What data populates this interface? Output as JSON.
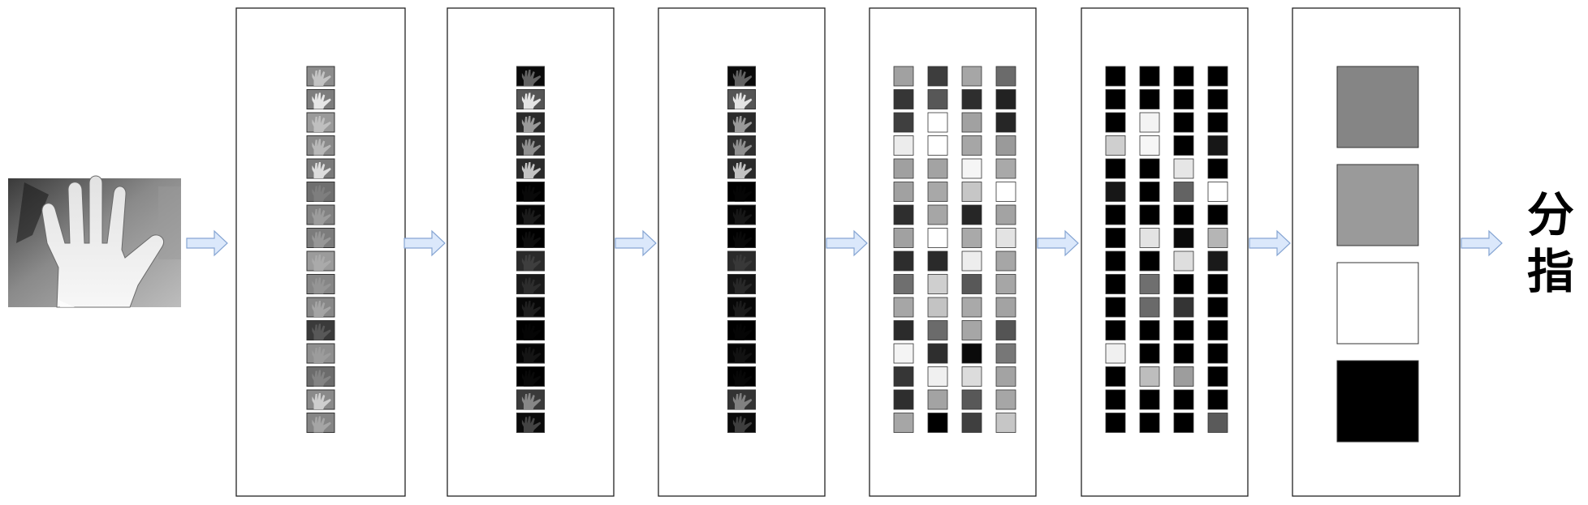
{
  "output_label": {
    "char1": "分",
    "char2": "指"
  },
  "colors": {
    "arrow_fill": "#dbe8fb",
    "arrow_stroke": "#86a5d3",
    "panel_border": "#222222",
    "cell_border": "#333333"
  },
  "input_image": {
    "icon": "grayscale-hand-photo"
  },
  "stages": [
    {
      "kind": "feature-maps",
      "maps": [
        {
          "bg": "#8c8c8c",
          "hand": "#c9c9c9"
        },
        {
          "bg": "#7d7d7d",
          "hand": "#f2f2f2"
        },
        {
          "bg": "#9a9a9a",
          "hand": "#c3c3c3"
        },
        {
          "bg": "#8a8a8a",
          "hand": "#bdbdbd"
        },
        {
          "bg": "#7a7a7a",
          "hand": "#e8e8e8"
        },
        {
          "bg": "#6f6f6f",
          "hand": "#808080"
        },
        {
          "bg": "#828282",
          "hand": "#9f9f9f"
        },
        {
          "bg": "#7c7c7c",
          "hand": "#9a9a9a"
        },
        {
          "bg": "#9b9b9b",
          "hand": "#acacac"
        },
        {
          "bg": "#868686",
          "hand": "#979797"
        },
        {
          "bg": "#888888",
          "hand": "#a7a7a7"
        },
        {
          "bg": "#3a3a3a",
          "hand": "#5c5c5c"
        },
        {
          "bg": "#8f8f8f",
          "hand": "#9d9d9d"
        },
        {
          "bg": "#6c6c6c",
          "hand": "#878787"
        },
        {
          "bg": "#8a8a8a",
          "hand": "#d5d5d5"
        },
        {
          "bg": "#858585",
          "hand": "#a9a9a9"
        }
      ]
    },
    {
      "kind": "feature-maps",
      "maps": [
        {
          "bg": "#0a0a0a",
          "hand": "#6b6b6b"
        },
        {
          "bg": "#555555",
          "hand": "#f4f4f4"
        },
        {
          "bg": "#2a2a2a",
          "hand": "#a6a6a6"
        },
        {
          "bg": "#2f2f2f",
          "hand": "#9a9a9a"
        },
        {
          "bg": "#2a2a2a",
          "hand": "#d4d4d4"
        },
        {
          "bg": "#000000",
          "hand": "#0a0a0a"
        },
        {
          "bg": "#050505",
          "hand": "#1e1e1e"
        },
        {
          "bg": "#000000",
          "hand": "#0f0f0f"
        },
        {
          "bg": "#2a2a2a",
          "hand": "#404040"
        },
        {
          "bg": "#1a1a1a",
          "hand": "#303030"
        },
        {
          "bg": "#070707",
          "hand": "#222222"
        },
        {
          "bg": "#000000",
          "hand": "#060606"
        },
        {
          "bg": "#050505",
          "hand": "#171717"
        },
        {
          "bg": "#000000",
          "hand": "#0a0a0a"
        },
        {
          "bg": "#3a3a3a",
          "hand": "#909090"
        },
        {
          "bg": "#0a0a0a",
          "hand": "#4a4a4a"
        }
      ]
    },
    {
      "kind": "feature-maps",
      "maps": [
        {
          "bg": "#0a0a0a",
          "hand": "#6b6b6b"
        },
        {
          "bg": "#555555",
          "hand": "#f4f4f4"
        },
        {
          "bg": "#2a2a2a",
          "hand": "#a6a6a6"
        },
        {
          "bg": "#2f2f2f",
          "hand": "#9a9a9a"
        },
        {
          "bg": "#2a2a2a",
          "hand": "#d4d4d4"
        },
        {
          "bg": "#000000",
          "hand": "#050505"
        },
        {
          "bg": "#050505",
          "hand": "#1a1a1a"
        },
        {
          "bg": "#000000",
          "hand": "#0a0a0a"
        },
        {
          "bg": "#2a2a2a",
          "hand": "#3a3a3a"
        },
        {
          "bg": "#141414",
          "hand": "#2a2a2a"
        },
        {
          "bg": "#070707",
          "hand": "#1e1e1e"
        },
        {
          "bg": "#000000",
          "hand": "#050505"
        },
        {
          "bg": "#050505",
          "hand": "#141414"
        },
        {
          "bg": "#000000",
          "hand": "#080808"
        },
        {
          "bg": "#333333",
          "hand": "#8a8a8a"
        },
        {
          "bg": "#0a0a0a",
          "hand": "#444444"
        }
      ]
    },
    {
      "kind": "grid",
      "rows": [
        [
          "#a1a1a1",
          "#3d3d3d",
          "#a6a6a6",
          "#6b6b6b"
        ],
        [
          "#363636",
          "#575757",
          "#2e2e2e",
          "#222222"
        ],
        [
          "#3f3f3f",
          "#ffffff",
          "#a1a1a1",
          "#262626"
        ],
        [
          "#ececec",
          "#ffffff",
          "#a6a6a6",
          "#9a9a9a"
        ],
        [
          "#a0a0a0",
          "#a3a3a3",
          "#f5f5f5",
          "#a9a9a9"
        ],
        [
          "#a1a1a1",
          "#a8a8a8",
          "#c6c6c6",
          "#ffffff"
        ],
        [
          "#2e2e2e",
          "#a6a6a6",
          "#262626",
          "#a3a3a3"
        ],
        [
          "#a1a1a1",
          "#ffffff",
          "#a9a9a9",
          "#e3e3e3"
        ],
        [
          "#2d2d2d",
          "#2a2a2a",
          "#ededed",
          "#a6a6a6"
        ],
        [
          "#6f6f6f",
          "#cfcfcf",
          "#585858",
          "#a6a6a6"
        ],
        [
          "#a6a6a6",
          "#c3c3c3",
          "#a9a9a9",
          "#a3a3a3"
        ],
        [
          "#2b2b2b",
          "#6b6b6b",
          "#a6a6a6",
          "#545454"
        ],
        [
          "#f4f4f4",
          "#2e2e2e",
          "#0a0a0a",
          "#777777"
        ],
        [
          "#363636",
          "#f0f0f0",
          "#dcdcdc",
          "#a3a3a3"
        ],
        [
          "#2e2e2e",
          "#a3a3a3",
          "#585858",
          "#a6a6a6"
        ],
        [
          "#a6a6a6",
          "#000000",
          "#3f3f3f",
          "#c6c6c6"
        ]
      ]
    },
    {
      "kind": "grid",
      "rows": [
        [
          "#000000",
          "#000000",
          "#000000",
          "#000000"
        ],
        [
          "#000000",
          "#000000",
          "#000000",
          "#000000"
        ],
        [
          "#000000",
          "#f3f3f3",
          "#000000",
          "#000000"
        ],
        [
          "#cfcfcf",
          "#f6f6f6",
          "#000000",
          "#171717"
        ],
        [
          "#000000",
          "#000000",
          "#e6e6e6",
          "#000000"
        ],
        [
          "#171717",
          "#000000",
          "#636363",
          "#ffffff"
        ],
        [
          "#000000",
          "#000000",
          "#000000",
          "#000000"
        ],
        [
          "#000000",
          "#e3e3e3",
          "#0a0a0a",
          "#b5b5b5"
        ],
        [
          "#000000",
          "#000000",
          "#dedede",
          "#1a1a1a"
        ],
        [
          "#000000",
          "#6f6f6f",
          "#000000",
          "#000000"
        ],
        [
          "#000000",
          "#6a6a6a",
          "#343434",
          "#000000"
        ],
        [
          "#000000",
          "#000000",
          "#000000",
          "#000000"
        ],
        [
          "#f0f0f0",
          "#000000",
          "#000000",
          "#000000"
        ],
        [
          "#000000",
          "#bdbdbd",
          "#9d9d9d",
          "#000000"
        ],
        [
          "#000000",
          "#000000",
          "#000000",
          "#000000"
        ],
        [
          "#000000",
          "#000000",
          "#000000",
          "#5a5a5a"
        ]
      ]
    },
    {
      "kind": "output-units",
      "units": [
        "#858585",
        "#9a9a9a",
        "#ffffff",
        "#000000"
      ]
    }
  ]
}
